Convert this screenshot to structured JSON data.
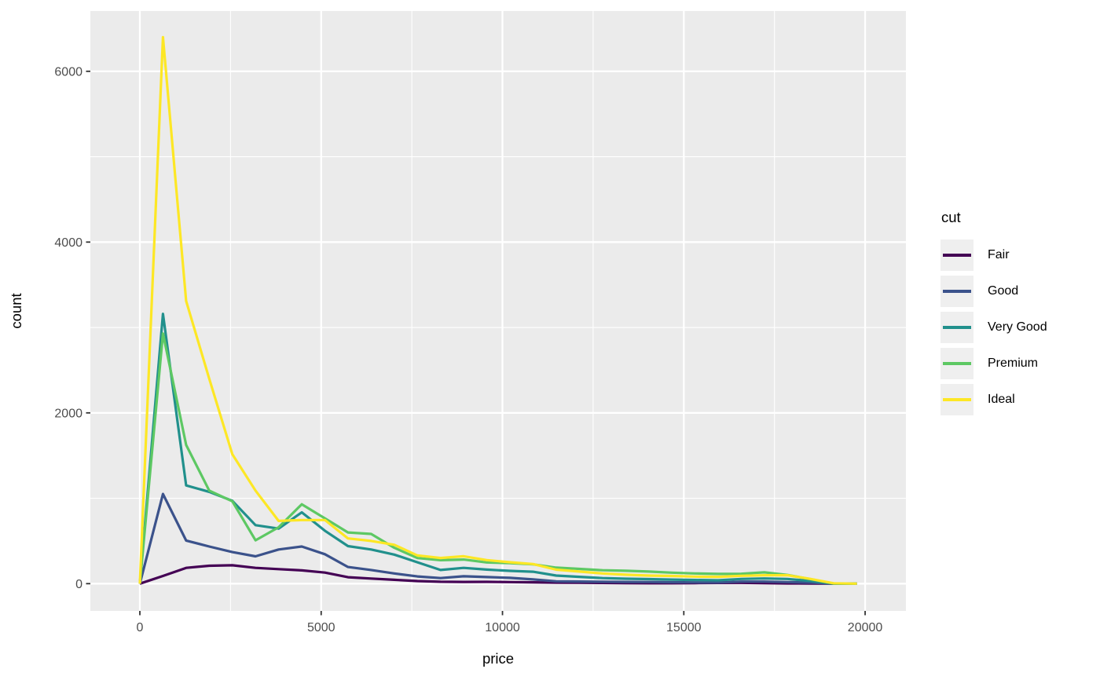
{
  "chart_data": {
    "type": "line",
    "subtype": "frequency-polygon",
    "x": [
      0,
      638,
      1276,
      1913,
      2551,
      3189,
      3827,
      4465,
      5103,
      5740,
      6378,
      7016,
      7654,
      8292,
      8930,
      9567,
      10205,
      10843,
      11481,
      12119,
      12757,
      13394,
      14032,
      14670,
      15308,
      15946,
      16584,
      17221,
      17859,
      18497,
      19135,
      19773
    ],
    "series": [
      {
        "name": "Fair",
        "color": "#440154",
        "values": [
          0,
          90,
          185,
          210,
          215,
          185,
          170,
          155,
          130,
          75,
          60,
          45,
          30,
          22,
          20,
          21,
          18,
          16,
          12,
          10,
          8,
          6,
          5,
          5,
          6,
          8,
          9,
          6,
          3,
          2,
          0,
          0
        ]
      },
      {
        "name": "Good",
        "color": "#3B528B",
        "values": [
          0,
          1050,
          505,
          435,
          370,
          320,
          400,
          435,
          345,
          195,
          160,
          120,
          85,
          65,
          86,
          77,
          68,
          50,
          28,
          25,
          22,
          20,
          19,
          17,
          15,
          14,
          24,
          24,
          18,
          12,
          0,
          0
        ]
      },
      {
        "name": "Very Good",
        "color": "#21908C",
        "values": [
          0,
          3160,
          1150,
          1075,
          970,
          685,
          645,
          835,
          620,
          440,
          400,
          340,
          250,
          160,
          185,
          165,
          150,
          140,
          95,
          80,
          65,
          58,
          53,
          48,
          43,
          40,
          55,
          61,
          55,
          31,
          0,
          0
        ]
      },
      {
        "name": "Premium",
        "color": "#5DC863",
        "values": [
          0,
          2930,
          1625,
          1090,
          965,
          508,
          660,
          930,
          765,
          600,
          582,
          420,
          300,
          275,
          282,
          248,
          241,
          226,
          188,
          173,
          157,
          151,
          142,
          129,
          120,
          114,
          116,
          132,
          102,
          52,
          1,
          0
        ]
      },
      {
        "name": "Ideal",
        "color": "#FDE725",
        "values": [
          0,
          6400,
          3310,
          2400,
          1515,
          1090,
          735,
          745,
          745,
          530,
          500,
          455,
          330,
          301,
          321,
          276,
          251,
          230,
          164,
          142,
          120,
          105,
          95,
          90,
          83,
          80,
          92,
          98,
          98,
          55,
          5,
          0
        ]
      }
    ],
    "x_axis": {
      "label": "price",
      "ticks": [
        0,
        5000,
        10000,
        15000,
        20000
      ],
      "tick_labels": [
        "0",
        "5000",
        "10000",
        "15000",
        "20000"
      ],
      "minor_ticks": [
        2500,
        7500,
        12500,
        17500
      ],
      "range": [
        -1365,
        21127
      ]
    },
    "y_axis": {
      "label": "count",
      "ticks": [
        0,
        2000,
        4000,
        6000
      ],
      "tick_labels": [
        "0",
        "2000",
        "4000",
        "6000"
      ],
      "minor_ticks": [
        1000,
        3000,
        5000
      ],
      "range": [
        -320,
        6710
      ]
    },
    "legend": {
      "title": "cut",
      "position": "right"
    },
    "grid": "on"
  },
  "style": {
    "plot_bg": "#FFFFFF",
    "panel_bg": "#EBEBEB",
    "grid_color": "#FFFFFF",
    "tick_mark_color": "#333333",
    "tick_label_color": "#4D4D4D",
    "axis_title_color": "#000000",
    "legend_key_bg": "#EFEFEF"
  }
}
